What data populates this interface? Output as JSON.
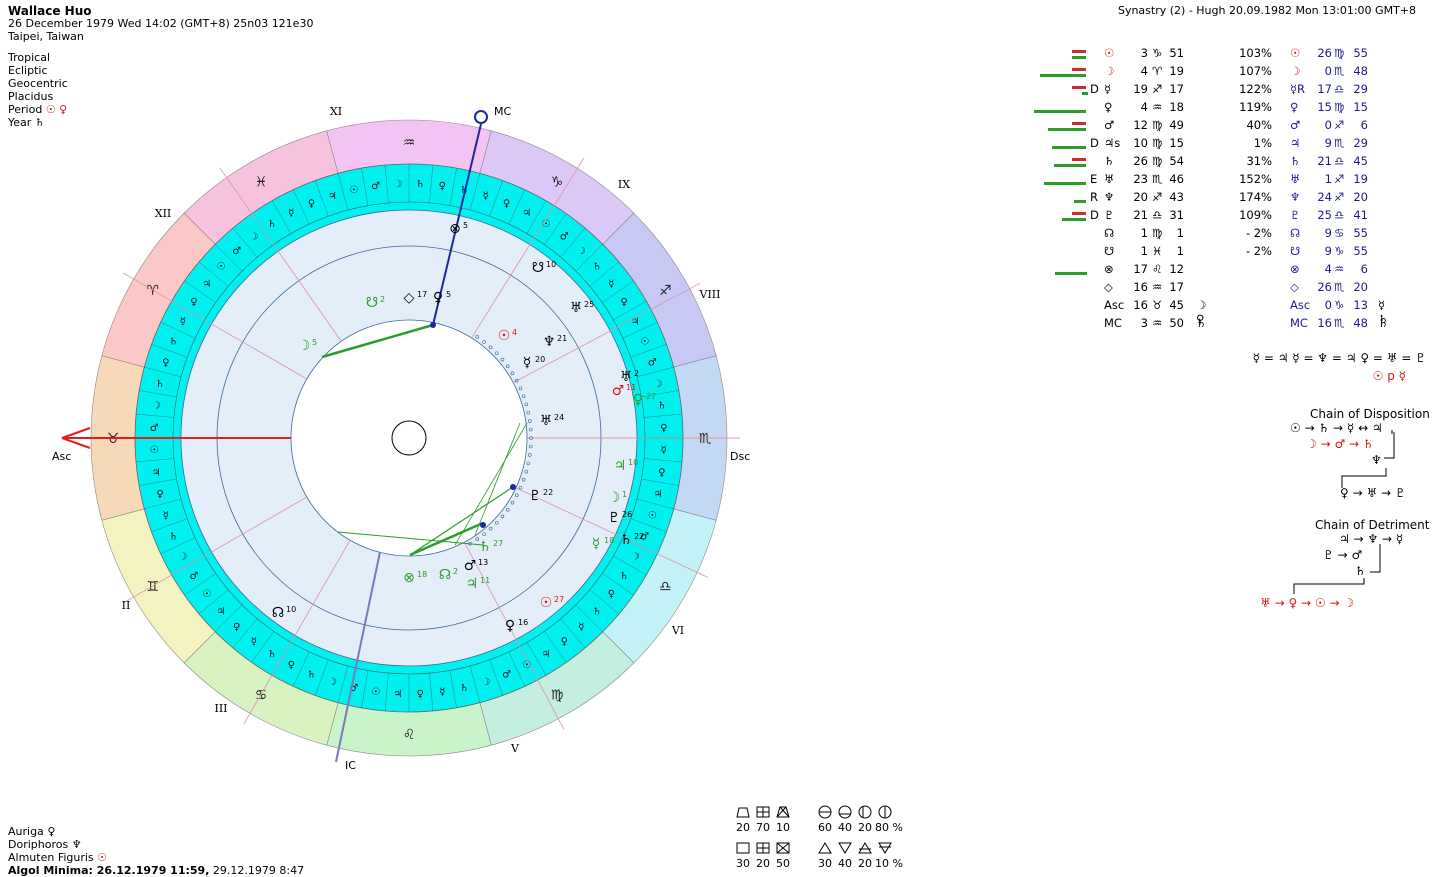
{
  "header": {
    "name": "Wallace Huo",
    "date_line": "26 December 1979  Wed  14:02 (GMT+8) 25n03  121e30",
    "place": "Taipei, Taiwan"
  },
  "settings": [
    "Tropical",
    "Ecliptic",
    "Geocentric",
    "Placidus"
  ],
  "period": {
    "label": "Period",
    "value": "☉ ♀"
  },
  "year": {
    "label": "Year",
    "value": "♄"
  },
  "synastry_title": "Synastry (2) - Hugh 20.09.1982  Mon 13:01:00 GMT+8",
  "colors": {
    "ring_cyan": "#00f0f0",
    "inner_fill": "#e4eef8",
    "sign_fire": "#f9c0c0",
    "sign_earth": "#c0f0c0",
    "sign_air": "#f0c0f8",
    "sign_water": "#c0d8f8",
    "axis_red": "#e02020",
    "mc_blue": "#1a2a9c",
    "aspect_green": "#2a9d2a"
  },
  "chart": {
    "house_labels": [
      "XI",
      "IX",
      "XII",
      "VIII",
      "II",
      "VI",
      "III",
      "V"
    ],
    "axis_labels": {
      "asc": "Asc",
      "dsc": "Dsc",
      "mc": "MC",
      "ic": "IC"
    },
    "signs": [
      "♒",
      "♑",
      "♐",
      "♏",
      "♎",
      "♍",
      "♌",
      "♋",
      "♊",
      "♉",
      "♈",
      "♓"
    ],
    "outer_planets": [
      {
        "glyph": "☉",
        "num": "4"
      },
      {
        "glyph": "♅",
        "num": "25"
      },
      {
        "glyph": "♆",
        "num": "21"
      },
      {
        "glyph": "☿",
        "num": "20"
      },
      {
        "glyph": "♂",
        "num": "11"
      },
      {
        "glyph": "♅",
        "num": "2"
      },
      {
        "glyph": "♀",
        "num": "27"
      },
      {
        "glyph": "♅",
        "num": "24"
      },
      {
        "glyph": "♃",
        "num": "10"
      },
      {
        "glyph": "☽",
        "num": "1"
      },
      {
        "glyph": "♇",
        "num": "22"
      },
      {
        "glyph": "♇",
        "num": "26"
      },
      {
        "glyph": "☿",
        "num": "18"
      },
      {
        "glyph": "♄",
        "num": "22"
      },
      {
        "glyph": "♄",
        "num": "27"
      },
      {
        "glyph": "♂",
        "num": "13"
      },
      {
        "glyph": "♃",
        "num": "11"
      },
      {
        "glyph": "☊",
        "num": "2"
      },
      {
        "glyph": "⊗",
        "num": "18"
      },
      {
        "glyph": "☉",
        "num": "27"
      },
      {
        "glyph": "♀",
        "num": "16"
      },
      {
        "glyph": "☊",
        "num": "10"
      },
      {
        "glyph": "☽",
        "num": "5"
      },
      {
        "glyph": "☋",
        "num": "2"
      },
      {
        "glyph": "◇",
        "num": "17"
      },
      {
        "glyph": "♀",
        "num": "5"
      },
      {
        "glyph": "⊗",
        "num": "5"
      },
      {
        "glyph": "☋",
        "num": "10"
      }
    ]
  },
  "table_left": [
    {
      "d": "",
      "glyph": "☉",
      "deg": "3",
      "sign": "♑",
      "min": "51",
      "pct": "103%",
      "rul": ""
    },
    {
      "d": "",
      "glyph": "☽",
      "deg": "4",
      "sign": "♈",
      "min": "19",
      "pct": "107%",
      "rul": ""
    },
    {
      "d": "D",
      "glyph": "☿",
      "deg": "19",
      "sign": "♐",
      "min": "17",
      "pct": "122%",
      "rul": ""
    },
    {
      "d": "",
      "glyph": "♀",
      "deg": "4",
      "sign": "♒",
      "min": "18",
      "pct": "119%",
      "rul": ""
    },
    {
      "d": "",
      "glyph": "♂",
      "deg": "12",
      "sign": "♍",
      "min": "49",
      "pct": "40%",
      "rul": ""
    },
    {
      "d": "D",
      "glyph": "♃s",
      "deg": "10",
      "sign": "♍",
      "min": "15",
      "pct": "1%",
      "rul": ""
    },
    {
      "d": "",
      "glyph": "♄",
      "deg": "26",
      "sign": "♍",
      "min": "54",
      "pct": "31%",
      "rul": ""
    },
    {
      "d": "E",
      "glyph": "♅",
      "deg": "23",
      "sign": "♏",
      "min": "46",
      "pct": "152%",
      "rul": ""
    },
    {
      "d": "R",
      "glyph": "♆",
      "deg": "20",
      "sign": "♐",
      "min": "43",
      "pct": "174%",
      "rul": ""
    },
    {
      "d": "D",
      "glyph": "♇",
      "deg": "21",
      "sign": "♎",
      "min": "31",
      "pct": "109%",
      "rul": ""
    },
    {
      "d": "",
      "glyph": "☊",
      "deg": "1",
      "sign": "♍",
      "min": "1",
      "pct": "-  2%",
      "rul": ""
    },
    {
      "d": "",
      "glyph": "☋",
      "deg": "1",
      "sign": "♓",
      "min": "1",
      "pct": "-  2%",
      "rul": ""
    },
    {
      "d": "",
      "glyph": "⊗",
      "deg": "17",
      "sign": "♌",
      "min": "12",
      "pct": "",
      "rul": ""
    },
    {
      "d": "",
      "glyph": "◇",
      "deg": "16",
      "sign": "♒",
      "min": "17",
      "pct": "",
      "rul": ""
    },
    {
      "d": "",
      "glyph": "Asc",
      "deg": "16",
      "sign": "♉",
      "min": "45",
      "pct": "",
      "rul": "☽ ♀"
    },
    {
      "d": "",
      "glyph": "MC",
      "deg": "3",
      "sign": "♒",
      "min": "50",
      "pct": "",
      "rul": "♄"
    }
  ],
  "table_right": [
    {
      "glyph": "☉",
      "deg": "26",
      "sign": "♍",
      "min": "55",
      "rul": ""
    },
    {
      "glyph": "☽",
      "deg": "0",
      "sign": "♏",
      "min": "48",
      "rul": ""
    },
    {
      "glyph": "☿R",
      "deg": "17",
      "sign": "♎",
      "min": "29",
      "rul": ""
    },
    {
      "glyph": "♀",
      "deg": "15",
      "sign": "♍",
      "min": "15",
      "rul": ""
    },
    {
      "glyph": "♂",
      "deg": "0",
      "sign": "♐",
      "min": "6",
      "rul": ""
    },
    {
      "glyph": "♃",
      "deg": "9",
      "sign": "♏",
      "min": "29",
      "rul": ""
    },
    {
      "glyph": "♄",
      "deg": "21",
      "sign": "♎",
      "min": "45",
      "rul": ""
    },
    {
      "glyph": "♅",
      "deg": "1",
      "sign": "♐",
      "min": "19",
      "rul": ""
    },
    {
      "glyph": "♆",
      "deg": "24",
      "sign": "♐",
      "min": "20",
      "rul": ""
    },
    {
      "glyph": "♇",
      "deg": "25",
      "sign": "♎",
      "min": "41",
      "rul": ""
    },
    {
      "glyph": "☊",
      "deg": "9",
      "sign": "♋",
      "min": "55",
      "rul": ""
    },
    {
      "glyph": "☋",
      "deg": "9",
      "sign": "♑",
      "min": "55",
      "rul": ""
    },
    {
      "glyph": "⊗",
      "deg": "4",
      "sign": "♒",
      "min": "6",
      "rul": ""
    },
    {
      "glyph": "◇",
      "deg": "26",
      "sign": "♏",
      "min": "20",
      "rul": ""
    },
    {
      "glyph": "Asc",
      "deg": "0",
      "sign": "♑",
      "min": "13",
      "rul": "☿ ♄"
    },
    {
      "glyph": "MC",
      "deg": "16",
      "sign": "♏",
      "min": "48",
      "rul": "♄"
    }
  ],
  "aspects_line": "☿ = ♃  ☿ = ♆ = ♃  ♀ = ♅ = ♇",
  "opposition_line": "☉ p ☿",
  "chain_disposition": {
    "title": "Chain of Disposition",
    "line1": "☉ → ♄ → ☿ ↔ ♃",
    "line2": "☽ → ♂ → ♄",
    "line3": "♆",
    "line4": "♀ → ♅ → ♇"
  },
  "chain_detriment": {
    "title": "Chain of Detriment",
    "line1": "♃ → ♆ → ☿",
    "line2": "♇ → ♂",
    "line3": "♄",
    "line4": "♅ → ♀ → ☉ → ☽"
  },
  "bottom_left": [
    {
      "label": "Auriga",
      "value": "♀"
    },
    {
      "label": "Doriphoros",
      "value": "♆"
    },
    {
      "label": "Almuten Figuris",
      "value": "☉"
    },
    {
      "label": "Algol Minima:",
      "value": "26.12.1979 11:59,",
      "extra": "29.12.1979  8:47"
    }
  ],
  "legend": {
    "row1_values": [
      "20",
      "70",
      "10"
    ],
    "row1b_values": [
      "60",
      "40",
      "20",
      "80 %"
    ],
    "row2_values": [
      "30",
      "20",
      "50"
    ],
    "row2b_values": [
      "30",
      "40",
      "20",
      "10 %"
    ]
  }
}
